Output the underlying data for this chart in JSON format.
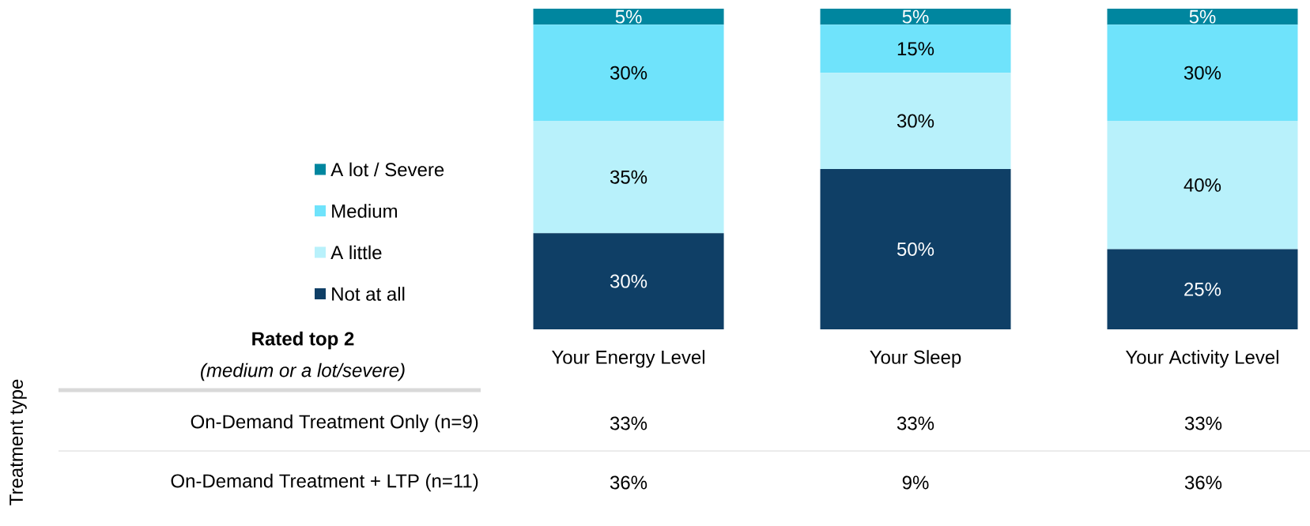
{
  "chart_data": {
    "type": "bar",
    "stacked": true,
    "legend": "left",
    "categories": [
      "Your Energy Level",
      "Your Sleep",
      "Your Activity Level"
    ],
    "series": [
      {
        "name": "Not at all",
        "color": "#0f3f66",
        "values": [
          30,
          50,
          25
        ],
        "value_labels": [
          "30%",
          "50%",
          "25%"
        ]
      },
      {
        "name": "A little",
        "color": "#b8f1fb",
        "values": [
          35,
          30,
          40
        ],
        "value_labels": [
          "35%",
          "30%",
          "40%"
        ]
      },
      {
        "name": "Medium",
        "color": "#6fe3fb",
        "values": [
          30,
          15,
          30
        ],
        "value_labels": [
          "30%",
          "15%",
          "30%"
        ]
      },
      {
        "name": "A lot / Severe",
        "color": "#00869f",
        "values": [
          5,
          5,
          5
        ],
        "value_labels": [
          "5%",
          "5%",
          "5%"
        ]
      }
    ],
    "annotations": [
      "Rated top 2",
      "(medium or a lot/severe)",
      "Treatment type",
      "On-Demand Treatment Only (n=9)",
      "33%",
      "33%",
      "33%",
      "On-Demand Treatment + LTP (n=11)",
      "36%",
      "9%",
      "36%"
    ]
  }
}
